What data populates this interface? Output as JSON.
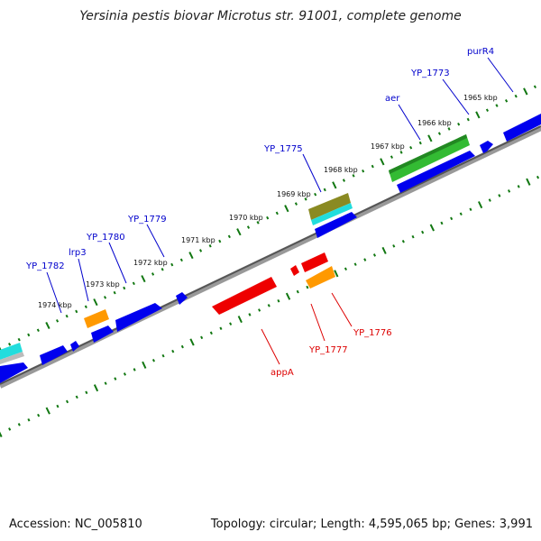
{
  "title": "Yersinia pestis biovar Microtus str. 91001, complete genome",
  "footer": {
    "accession": "Accession: NC_005810",
    "topology": "Topology: circular; Length: 4,595,065 bp; Genes: 3,991"
  },
  "scale_ticks": [
    "1965 kbp",
    "1966 kbp",
    "1967 kbp",
    "1968 kbp",
    "1969 kbp",
    "1970 kbp",
    "1971 kbp",
    "1972 kbp",
    "1973 kbp",
    "1974 kbp"
  ],
  "gene_labels": {
    "forward": [
      "purR4",
      "YP_1773",
      "aer",
      "YP_1775",
      "YP_1779",
      "YP_1780",
      "lrp3",
      "YP_1782"
    ],
    "reverse": [
      "YP_1776",
      "YP_1777",
      "appA"
    ]
  },
  "colors": {
    "forward_cds": "#0000ee",
    "reverse_cds": "#ee0000",
    "orange_feature": "#ff9900",
    "green_feature": "#33bb33",
    "olive_feature": "#8a8a22",
    "cyan_feature": "#22dddd",
    "backbone": "#777777",
    "tick": "#117711",
    "forward_label": "#0000cc",
    "reverse_label": "#dd0000"
  }
}
